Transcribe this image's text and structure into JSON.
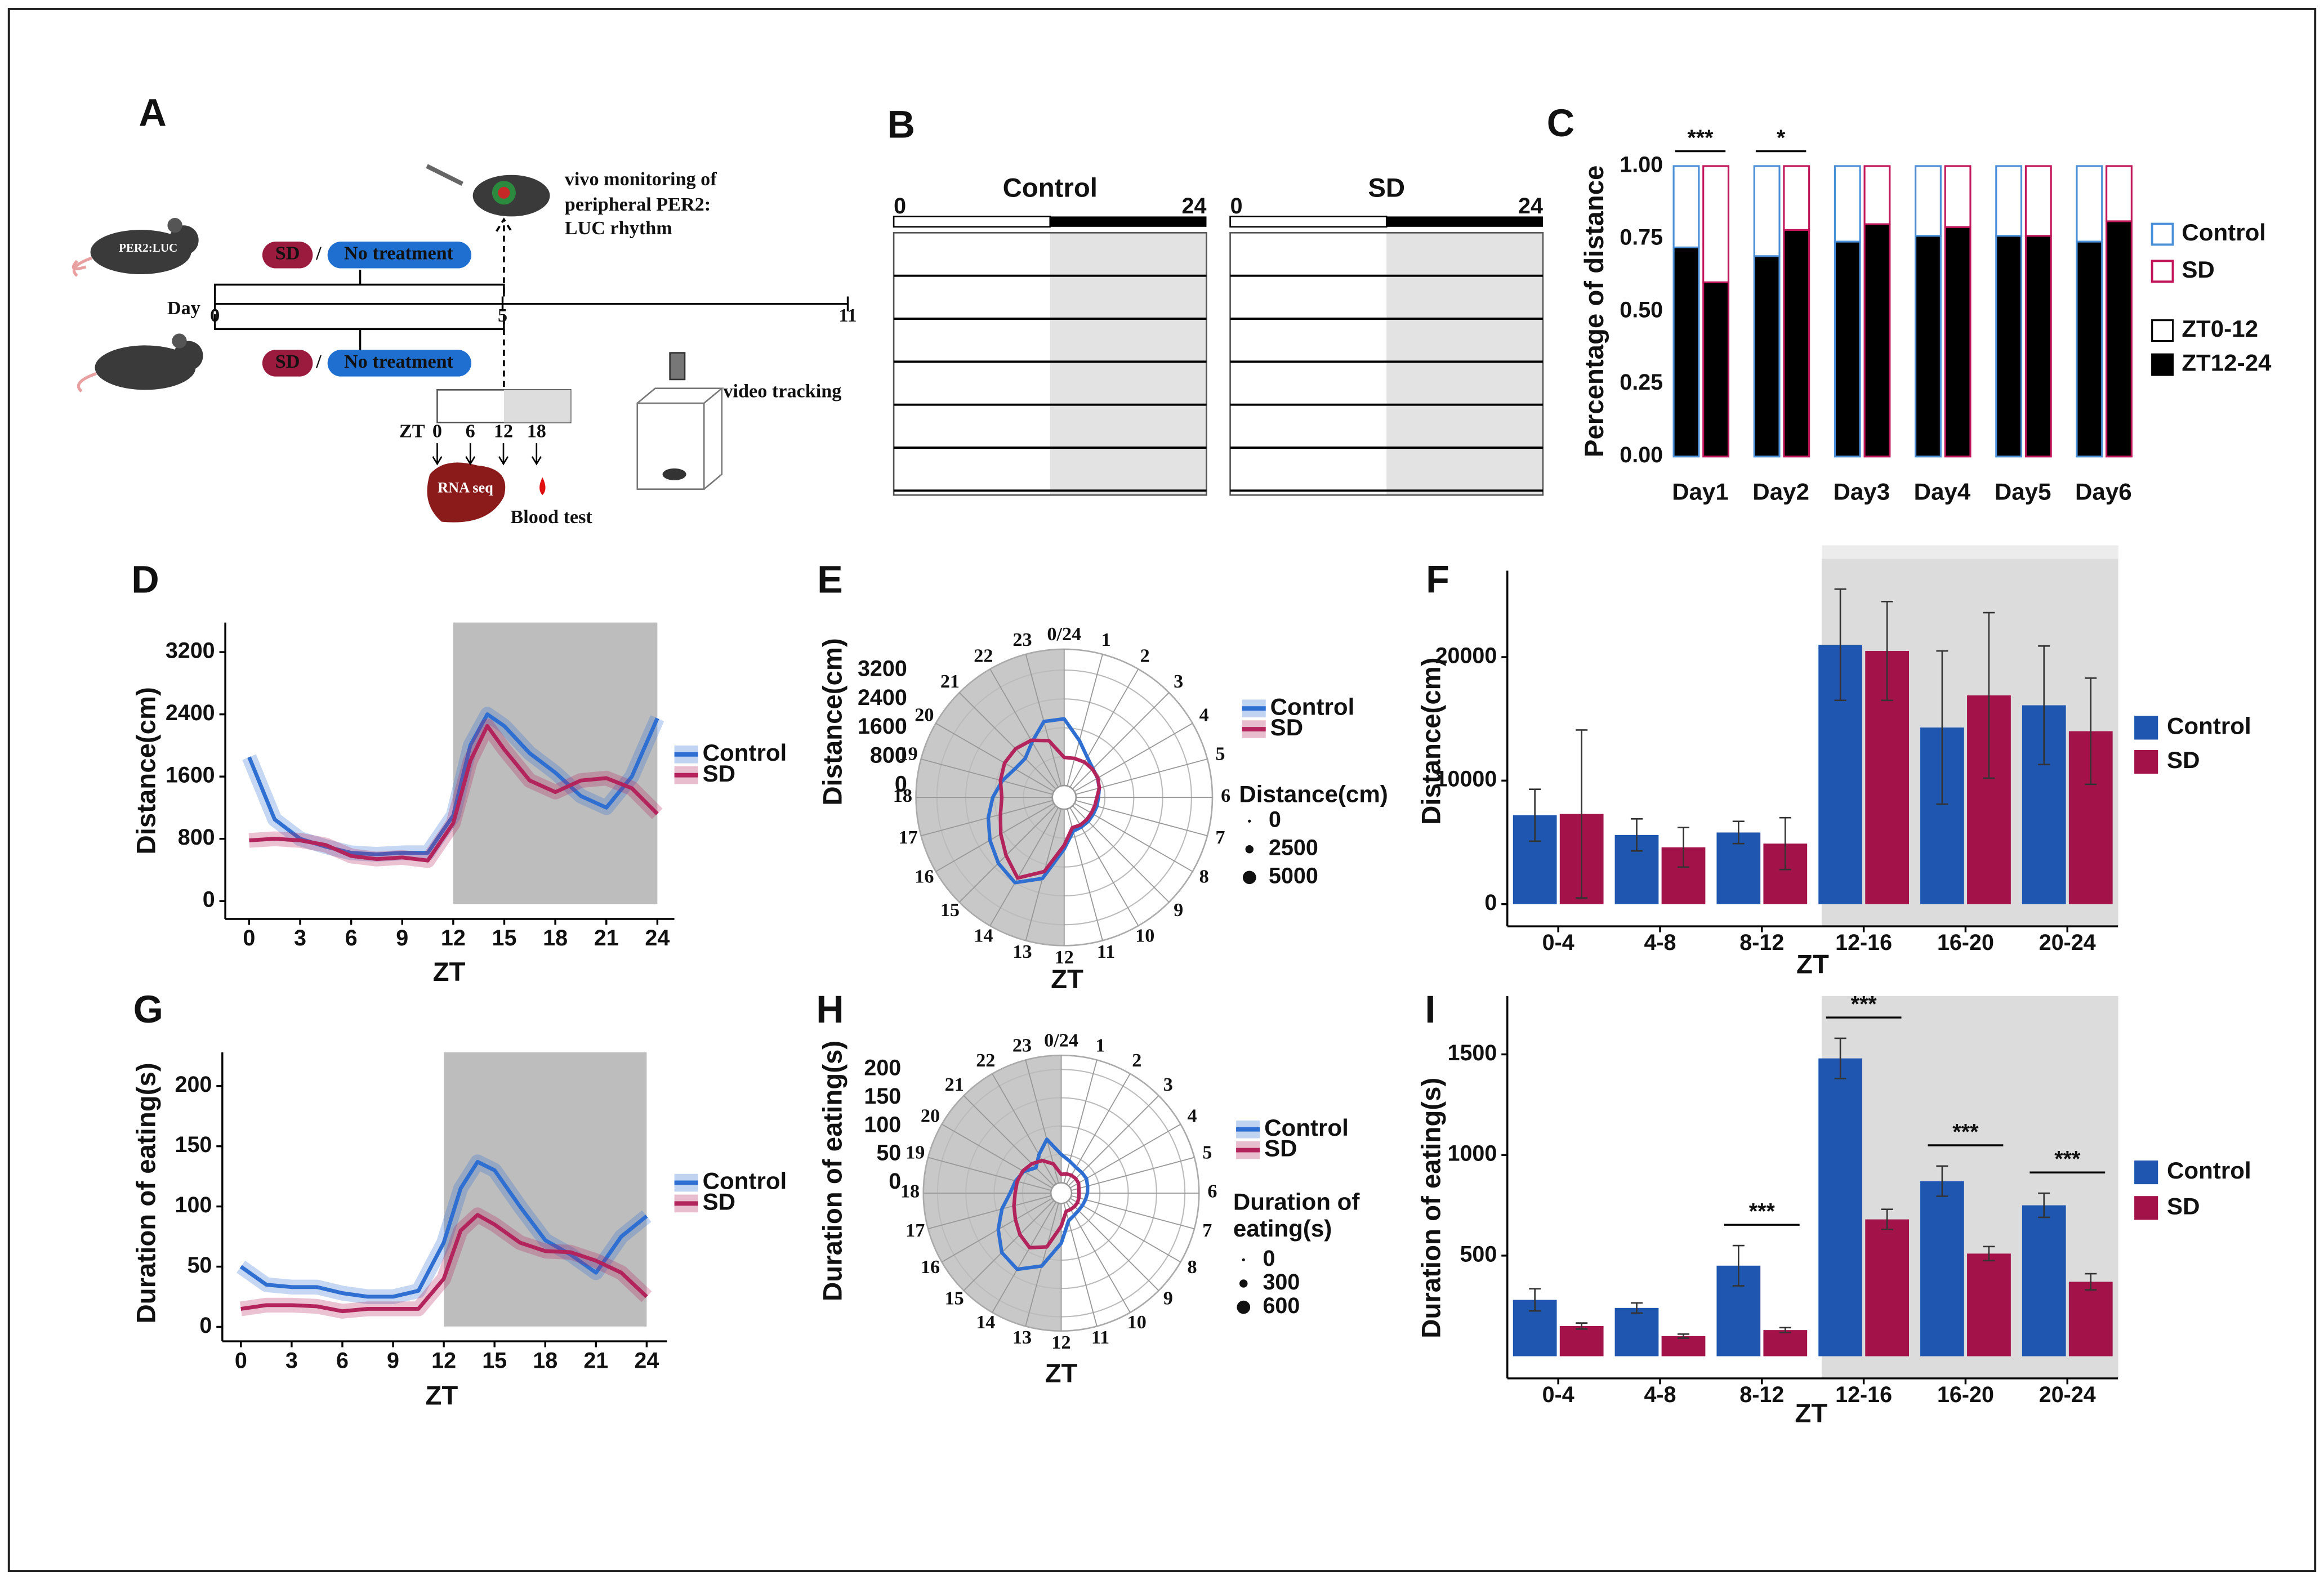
{
  "diagram": {
    "label": "A",
    "mouse_label": "PER2:LUC",
    "treatment": {
      "a": "SD",
      "sep": "/",
      "b": "No treatment"
    },
    "monitoring": [
      "vivo monitoring of",
      "peripheral PER2:",
      "LUC rhythm"
    ],
    "timeline": {
      "label": "Day",
      "ticks": [
        0,
        5,
        11
      ]
    },
    "sampling": {
      "label": "ZT",
      "ticks": [
        0,
        6,
        12,
        18
      ]
    },
    "rna": "RNA seq",
    "blood": "Blood test",
    "video": "video tracking"
  },
  "actogram": {
    "label": "B",
    "panels": [
      {
        "title": "Control",
        "xticks": [
          0,
          24
        ]
      },
      {
        "title": "SD",
        "xticks": [
          0,
          24
        ]
      }
    ]
  },
  "chart_data": [
    {
      "type": "stacked_bar",
      "label": "C",
      "ylabel": "Percentage of distance",
      "categories": [
        "Day1",
        "Day2",
        "Day3",
        "Day4",
        "Day5",
        "Day6"
      ],
      "ylim": [
        0,
        1
      ],
      "yticks": [
        {
          "value": 0,
          "label": "0.00"
        },
        0.25,
        {
          "value": 0.5,
          "label": "0.50"
        },
        0.75,
        {
          "value": 1,
          "label": "1.00"
        }
      ],
      "segments": [
        {
          "name": "ZT0-12",
          "color": "#ffffff"
        },
        {
          "name": "ZT12-24",
          "color": "#000000"
        }
      ],
      "series": [
        {
          "name": "Control",
          "color": "#4a8fd8",
          "values": [
            [
              0.28,
              0.72
            ],
            [
              0.31,
              0.69
            ],
            [
              0.26,
              0.74
            ],
            [
              0.24,
              0.76
            ],
            [
              0.24,
              0.76
            ],
            [
              0.26,
              0.74
            ]
          ]
        },
        {
          "name": "SD",
          "color": "#c2185b",
          "values": [
            [
              0.4,
              0.6
            ],
            [
              0.22,
              0.78
            ],
            [
              0.2,
              0.8
            ],
            [
              0.21,
              0.79
            ],
            [
              0.24,
              0.76
            ],
            [
              0.19,
              0.81
            ]
          ]
        }
      ],
      "annotations": [
        {
          "text": "***",
          "at": "Day1"
        },
        {
          "text": "*",
          "at": "Day2"
        }
      ]
    },
    {
      "type": "line",
      "label": "D",
      "xlabel": "ZT",
      "ylabel": "Distance(cm)",
      "x": [
        0,
        1.5,
        3,
        4.5,
        6,
        7.5,
        9,
        10.5,
        12,
        13,
        14,
        15,
        16.5,
        18,
        19.5,
        21,
        22.5,
        24
      ],
      "xlim": [
        -1.4,
        25
      ],
      "xticks": [
        0,
        3,
        6,
        9,
        12,
        15,
        18,
        21,
        24
      ],
      "ylim": [
        -230,
        3580
      ],
      "yticks": [
        0,
        800,
        1600,
        2400,
        3200
      ],
      "shade": [
        12,
        24
      ],
      "series": [
        {
          "name": "Control",
          "color": "#2f6fd1",
          "values": [
            1850,
            1050,
            800,
            700,
            620,
            600,
            620,
            620,
            1100,
            2000,
            2400,
            2250,
            1900,
            1650,
            1350,
            1200,
            1600,
            2350
          ]
        },
        {
          "name": "SD",
          "color": "#b3245c",
          "values": [
            780,
            800,
            780,
            720,
            580,
            540,
            560,
            520,
            1000,
            1800,
            2250,
            1950,
            1550,
            1400,
            1550,
            1580,
            1450,
            1120
          ]
        }
      ]
    },
    {
      "type": "polar",
      "label": "E",
      "xlabel": "ZT",
      "ylabel": "Distance(cm)",
      "x": [
        0,
        1,
        2,
        3,
        4,
        5,
        6,
        7,
        8,
        9,
        10,
        11,
        12,
        13,
        14,
        15,
        16,
        17,
        18,
        19,
        20,
        21,
        22,
        23
      ],
      "xticks": [
        {
          "value": 0,
          "label": "0/24"
        },
        1,
        2,
        3,
        4,
        5,
        6,
        7,
        8,
        9,
        10,
        11,
        12,
        13,
        14,
        15,
        16,
        17,
        18,
        19,
        20,
        21,
        22,
        23
      ],
      "rlim": [
        0,
        3780
      ],
      "rticks": [
        0,
        800,
        1600,
        2400,
        3200
      ],
      "shade": [
        12,
        24
      ],
      "series": [
        {
          "name": "Control",
          "color": "#2f6fd1",
          "values": [
            1850,
            1300,
            950,
            800,
            740,
            680,
            620,
            610,
            600,
            610,
            620,
            640,
            1100,
            2000,
            2400,
            2250,
            2050,
            1850,
            1650,
            1450,
            1250,
            1200,
            1450,
            1850
          ]
        },
        {
          "name": "SD",
          "color": "#b3245c",
          "values": [
            780,
            790,
            800,
            780,
            750,
            680,
            580,
            550,
            540,
            550,
            560,
            540,
            1000,
            1800,
            2250,
            1950,
            1700,
            1500,
            1400,
            1500,
            1580,
            1580,
            1500,
            1300
          ]
        }
      ],
      "size_legend": {
        "title": [
          "Distance(cm)"
        ],
        "values": [
          0,
          2500,
          5000
        ]
      }
    },
    {
      "type": "grouped_bar",
      "label": "F",
      "xlabel": "ZT",
      "ylabel": "Distance(cm)",
      "categories": [
        "0-4",
        "4-8",
        "8-12",
        "12-16",
        "16-20",
        "20-24"
      ],
      "ylim": [
        -1800,
        27000
      ],
      "yticks": [
        0,
        10000,
        20000
      ],
      "shade": [
        "12-16",
        "20-24"
      ],
      "series": [
        {
          "name": "Control",
          "color": "#1f56b0",
          "values": [
            7200,
            5600,
            5800,
            21000,
            14300,
            16100
          ],
          "errors": [
            2100,
            1300,
            900,
            4500,
            6200,
            4800
          ]
        },
        {
          "name": "SD",
          "color": "#a3134a",
          "values": [
            7300,
            4600,
            4900,
            20500,
            16900,
            14000
          ],
          "errors": [
            6800,
            1600,
            2100,
            4000,
            6700,
            4300
          ]
        }
      ],
      "annotations": []
    },
    {
      "type": "line",
      "label": "G",
      "xlabel": "ZT",
      "ylabel": "Duration of eating(s)",
      "x": [
        0,
        1.5,
        3,
        4.5,
        6,
        7.5,
        9,
        10.5,
        12,
        13,
        14,
        15,
        16.5,
        18,
        19.5,
        21,
        22.5,
        24
      ],
      "xlim": [
        -1.1,
        25.2
      ],
      "xticks": [
        0,
        3,
        6,
        9,
        12,
        15,
        18,
        21,
        24
      ],
      "ylim": [
        -12,
        228
      ],
      "yticks": [
        0,
        50,
        100,
        150,
        200
      ],
      "shade": [
        12,
        24
      ],
      "series": [
        {
          "name": "Control",
          "color": "#2f6fd1",
          "values": [
            50,
            35,
            33,
            33,
            28,
            25,
            25,
            30,
            70,
            115,
            137,
            130,
            100,
            72,
            60,
            45,
            75,
            92
          ]
        },
        {
          "name": "SD",
          "color": "#b3245c",
          "values": [
            15,
            18,
            18,
            17,
            13,
            15,
            15,
            15,
            40,
            80,
            93,
            85,
            70,
            63,
            62,
            55,
            45,
            25
          ]
        }
      ]
    },
    {
      "type": "polar",
      "label": "H",
      "xlabel": "ZT",
      "ylabel": "Duration of eating(s)",
      "x": [
        0,
        1,
        2,
        3,
        4,
        5,
        6,
        7,
        8,
        9,
        10,
        11,
        12,
        13,
        14,
        15,
        16,
        17,
        18,
        19,
        20,
        21,
        22,
        23
      ],
      "xticks": [
        {
          "value": 0,
          "label": "0/24"
        },
        1,
        2,
        3,
        4,
        5,
        6,
        7,
        8,
        9,
        10,
        11,
        12,
        13,
        14,
        15,
        16,
        17,
        18,
        19,
        20,
        21,
        22,
        23
      ],
      "rlim": [
        0,
        225
      ],
      "rticks": [
        0,
        50,
        100,
        150,
        200
      ],
      "shade": [
        12,
        24
      ],
      "series": [
        {
          "name": "Control",
          "color": "#2f6fd1",
          "values": [
            50,
            40,
            34,
            33,
            33,
            30,
            28,
            26,
            25,
            25,
            27,
            32,
            70,
            115,
            137,
            130,
            110,
            90,
            72,
            65,
            58,
            45,
            60,
            80
          ]
        },
        {
          "name": "SD",
          "color": "#b3245c",
          "values": [
            15,
            17,
            18,
            18,
            17,
            14,
            13,
            14,
            15,
            15,
            15,
            15,
            40,
            80,
            93,
            85,
            75,
            68,
            63,
            62,
            60,
            55,
            48,
            35
          ]
        }
      ],
      "size_legend": {
        "title": [
          "Duration of",
          "eating(s)"
        ],
        "values": [
          0,
          300,
          600
        ]
      }
    },
    {
      "type": "grouped_bar",
      "label": "I",
      "xlabel": "ZT",
      "ylabel": "Duration of eating(s)",
      "categories": [
        "0-4",
        "4-8",
        "8-12",
        "12-16",
        "16-20",
        "20-24"
      ],
      "ylim": [
        -110,
        1790
      ],
      "yticks": [
        500,
        1000,
        1500
      ],
      "shade": [
        "12-16",
        "20-24"
      ],
      "series": [
        {
          "name": "Control",
          "color": "#1f56b0",
          "values": [
            280,
            240,
            450,
            1480,
            870,
            750
          ],
          "errors": [
            55,
            25,
            100,
            100,
            75,
            60
          ]
        },
        {
          "name": "SD",
          "color": "#a3134a",
          "values": [
            150,
            100,
            130,
            680,
            510,
            370
          ],
          "errors": [
            15,
            10,
            12,
            50,
            35,
            40
          ]
        }
      ],
      "annotations": [
        {
          "text": "***",
          "at": "8-12"
        },
        {
          "text": "***",
          "at": "12-16"
        },
        {
          "text": "***",
          "at": "16-20"
        },
        {
          "text": "***",
          "at": "20-24"
        }
      ]
    }
  ]
}
